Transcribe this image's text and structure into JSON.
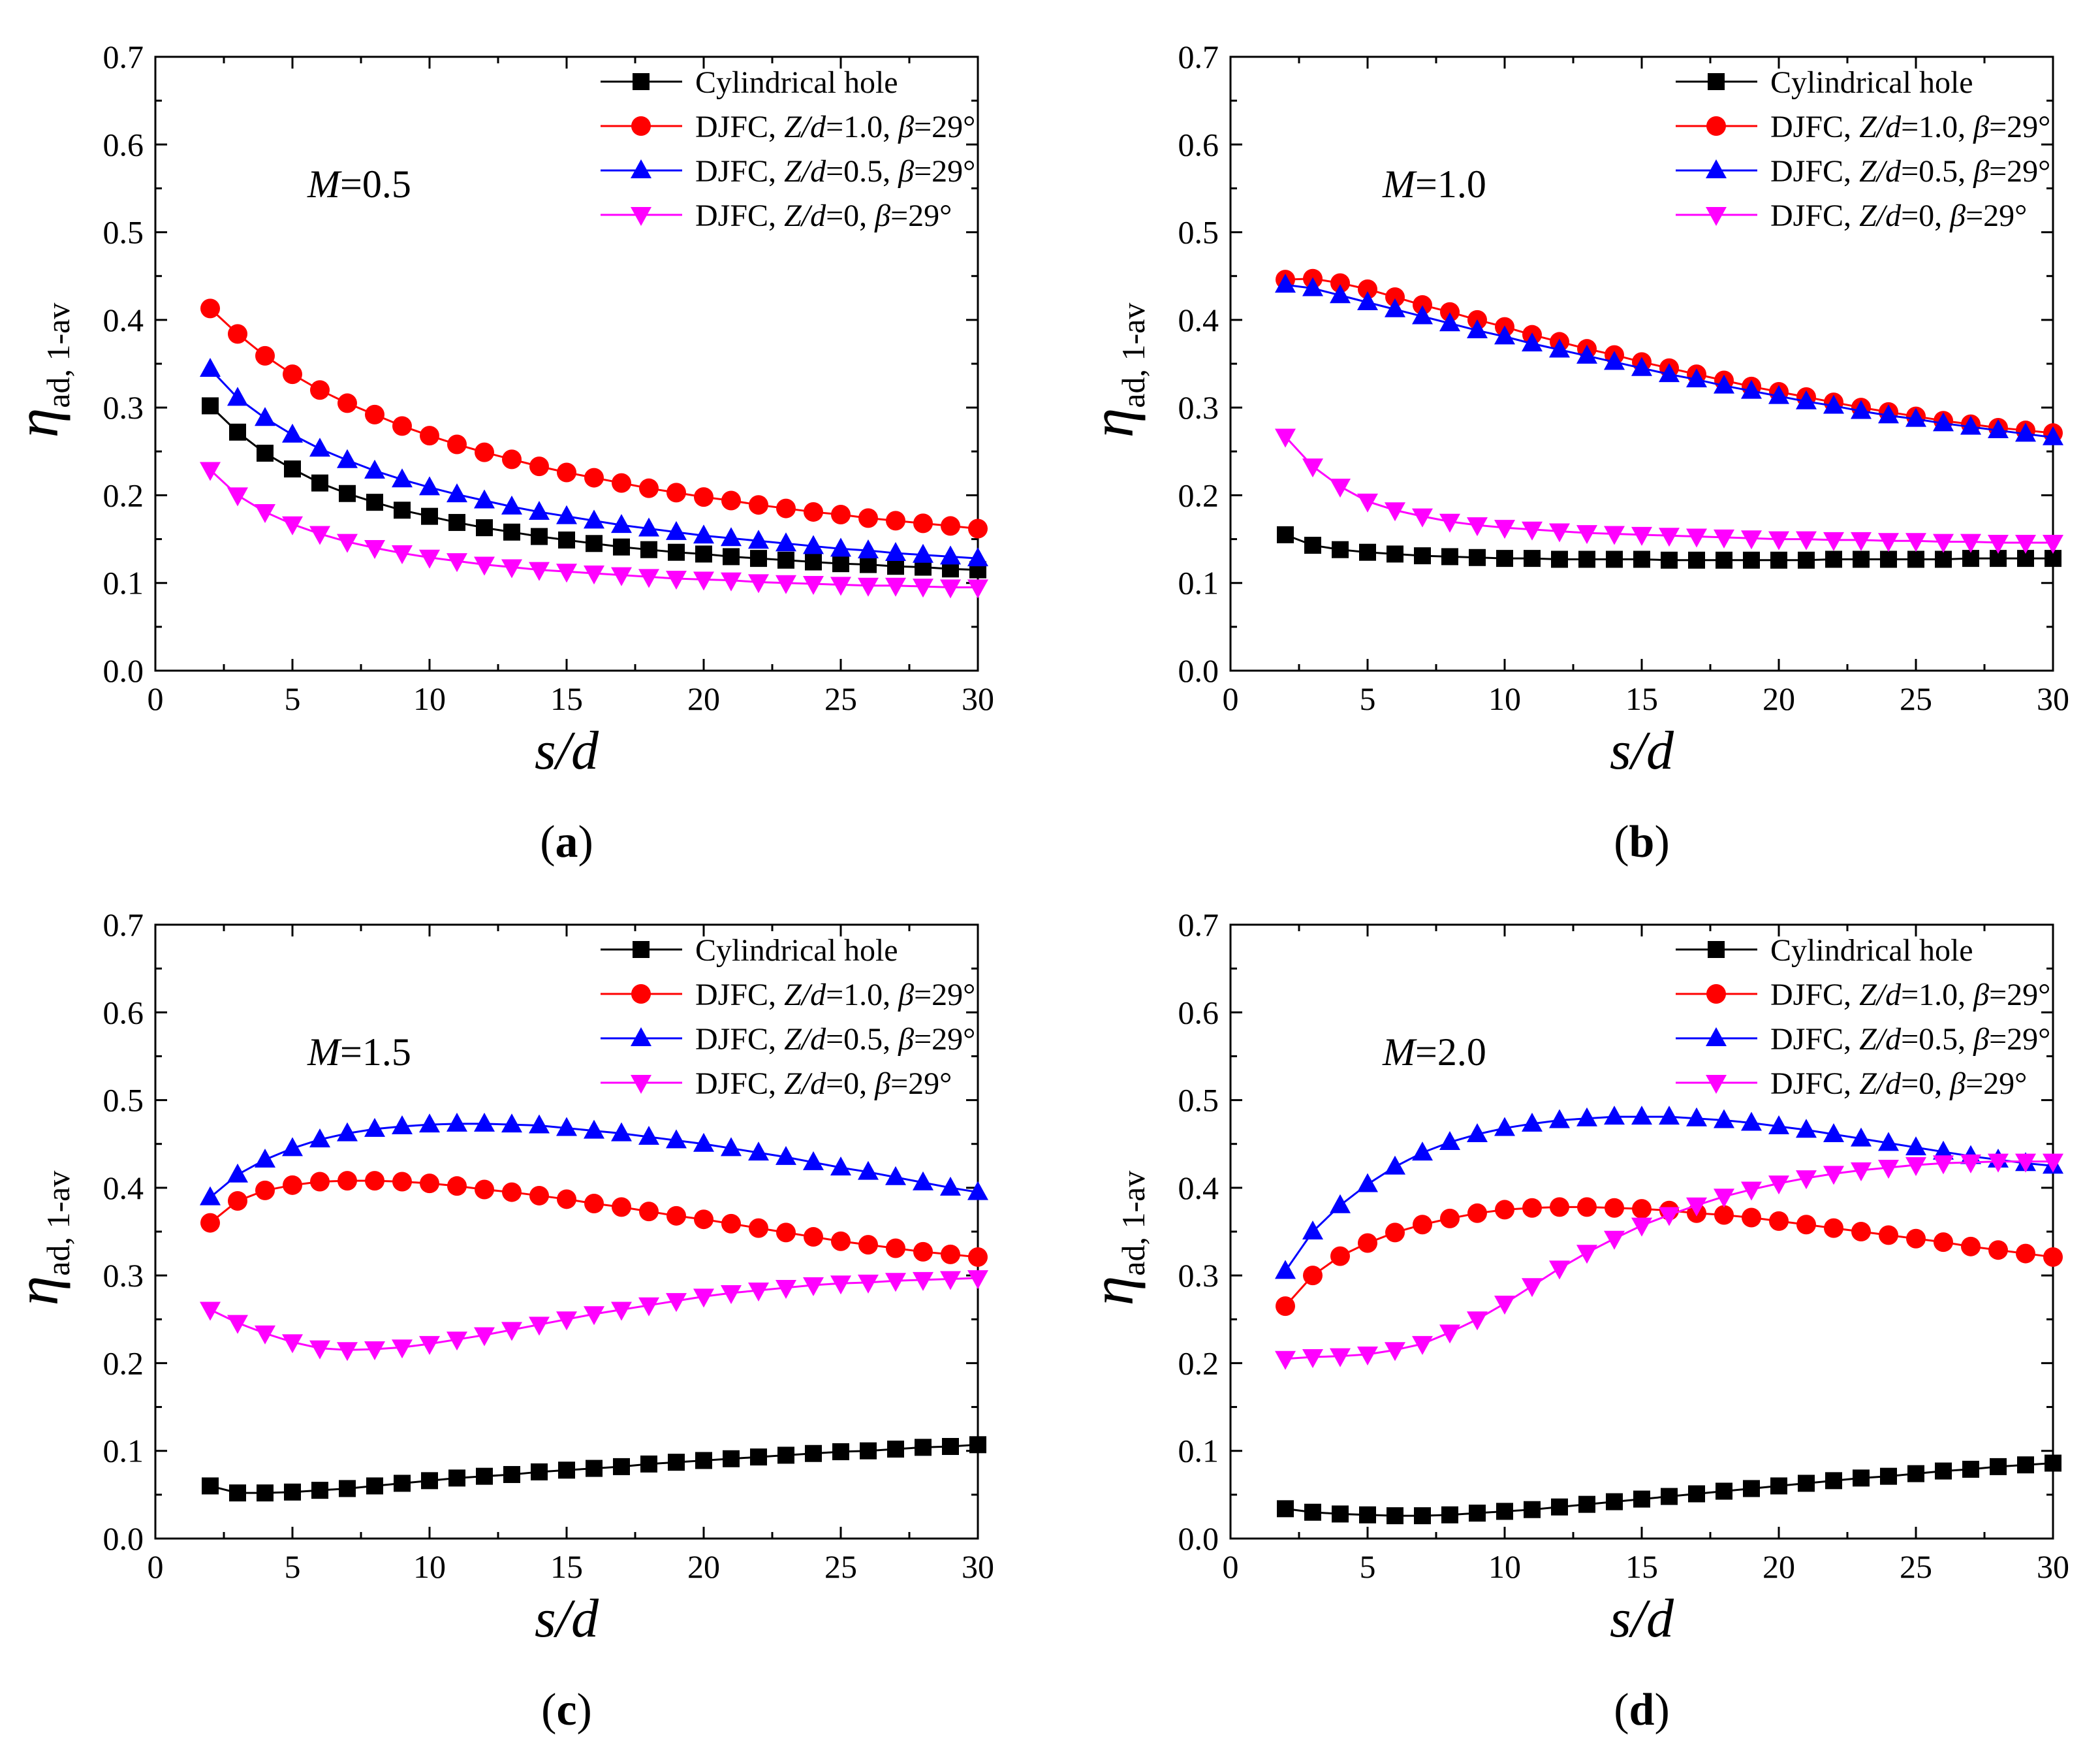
{
  "x": [
    2,
    3,
    4,
    5,
    6,
    7,
    8,
    9,
    10,
    11,
    12,
    13,
    14,
    15,
    16,
    17,
    18,
    19,
    20,
    21,
    22,
    23,
    24,
    25,
    26,
    27,
    28,
    29,
    30
  ],
  "charts": [
    {
      "caption": "(a)",
      "caption_letter": "a",
      "annotation": "M=0.5",
      "annotation_var": "M",
      "annotation_val": "=0.5",
      "chart_data": {
        "type": "line",
        "xlabel": "s/d",
        "ylabel": "η ad, 1-av",
        "xlim": [
          0,
          30
        ],
        "ylim": [
          0,
          0.7
        ],
        "x": [
          2,
          3,
          4,
          5,
          6,
          7,
          8,
          9,
          10,
          11,
          12,
          13,
          14,
          15,
          16,
          17,
          18,
          19,
          20,
          21,
          22,
          23,
          24,
          25,
          26,
          27,
          28,
          29,
          30
        ],
        "series": [
          {
            "name": "Cylindrical hole",
            "color": "#000000",
            "marker": "square",
            "values": [
              0.302,
              0.272,
              0.248,
              0.23,
              0.214,
              0.202,
              0.192,
              0.183,
              0.176,
              0.169,
              0.163,
              0.158,
              0.153,
              0.149,
              0.145,
              0.141,
              0.138,
              0.135,
              0.133,
              0.13,
              0.128,
              0.126,
              0.124,
              0.122,
              0.121,
              0.119,
              0.118,
              0.116,
              0.115
            ]
          },
          {
            "name": "DJFC, Z/d=1.0, β=29°",
            "color": "#ff0000",
            "marker": "circle",
            "values": [
              0.413,
              0.384,
              0.359,
              0.338,
              0.32,
              0.305,
              0.292,
              0.279,
              0.268,
              0.258,
              0.249,
              0.241,
              0.233,
              0.226,
              0.22,
              0.214,
              0.208,
              0.203,
              0.198,
              0.194,
              0.189,
              0.185,
              0.181,
              0.178,
              0.174,
              0.171,
              0.168,
              0.165,
              0.162
            ]
          },
          {
            "name": "DJFC, Z/d=0.5, β=29°",
            "color": "#0000ff",
            "marker": "triangle-up",
            "values": [
              0.344,
              0.311,
              0.288,
              0.269,
              0.253,
              0.24,
              0.228,
              0.218,
              0.209,
              0.201,
              0.194,
              0.187,
              0.181,
              0.176,
              0.171,
              0.166,
              0.162,
              0.158,
              0.154,
              0.151,
              0.148,
              0.145,
              0.142,
              0.139,
              0.137,
              0.134,
              0.132,
              0.13,
              0.128
            ]
          },
          {
            "name": "DJFC, Z/d=0, β=29°",
            "color": "#ff00ff",
            "marker": "triangle-down",
            "values": [
              0.229,
              0.2,
              0.181,
              0.167,
              0.156,
              0.147,
              0.14,
              0.134,
              0.129,
              0.125,
              0.121,
              0.118,
              0.115,
              0.113,
              0.111,
              0.109,
              0.107,
              0.105,
              0.104,
              0.103,
              0.101,
              0.1,
              0.099,
              0.098,
              0.097,
              0.097,
              0.096,
              0.095,
              0.095
            ]
          }
        ]
      }
    },
    {
      "caption": "(b)",
      "caption_letter": "b",
      "annotation": "M=1.0",
      "annotation_var": "M",
      "annotation_val": "=1.0",
      "chart_data": {
        "type": "line",
        "xlabel": "s/d",
        "ylabel": "η ad, 1-av",
        "xlim": [
          0,
          30
        ],
        "ylim": [
          0,
          0.7
        ],
        "x": [
          2,
          3,
          4,
          5,
          6,
          7,
          8,
          9,
          10,
          11,
          12,
          13,
          14,
          15,
          16,
          17,
          18,
          19,
          20,
          21,
          22,
          23,
          24,
          25,
          26,
          27,
          28,
          29,
          30
        ],
        "series": [
          {
            "name": "Cylindrical hole",
            "color": "#000000",
            "marker": "square",
            "values": [
              0.155,
              0.143,
              0.138,
              0.135,
              0.133,
              0.131,
              0.13,
              0.129,
              0.128,
              0.128,
              0.127,
              0.127,
              0.127,
              0.127,
              0.126,
              0.126,
              0.126,
              0.126,
              0.126,
              0.126,
              0.127,
              0.127,
              0.127,
              0.127,
              0.127,
              0.128,
              0.128,
              0.128,
              0.128
            ]
          },
          {
            "name": "DJFC, Z/d=1.0, β=29°",
            "color": "#ff0000",
            "marker": "circle",
            "values": [
              0.446,
              0.447,
              0.442,
              0.435,
              0.426,
              0.417,
              0.409,
              0.4,
              0.392,
              0.383,
              0.375,
              0.367,
              0.36,
              0.352,
              0.345,
              0.338,
              0.331,
              0.324,
              0.318,
              0.312,
              0.306,
              0.3,
              0.295,
              0.29,
              0.285,
              0.281,
              0.277,
              0.274,
              0.271
            ]
          },
          {
            "name": "DJFC, Z/d=0.5, β=29°",
            "color": "#0000ff",
            "marker": "triangle-up",
            "values": [
              0.44,
              0.436,
              0.428,
              0.42,
              0.412,
              0.404,
              0.396,
              0.388,
              0.381,
              0.373,
              0.366,
              0.359,
              0.352,
              0.345,
              0.338,
              0.332,
              0.325,
              0.319,
              0.313,
              0.307,
              0.302,
              0.296,
              0.291,
              0.287,
              0.282,
              0.278,
              0.274,
              0.27,
              0.266
            ]
          },
          {
            "name": "DJFC, Z/d=0, β=29°",
            "color": "#ff00ff",
            "marker": "triangle-down",
            "values": [
              0.267,
              0.233,
              0.21,
              0.193,
              0.183,
              0.176,
              0.17,
              0.166,
              0.163,
              0.161,
              0.159,
              0.157,
              0.156,
              0.155,
              0.154,
              0.153,
              0.152,
              0.151,
              0.15,
              0.15,
              0.149,
              0.149,
              0.148,
              0.148,
              0.147,
              0.147,
              0.146,
              0.146,
              0.146
            ]
          }
        ]
      }
    },
    {
      "caption": "(c)",
      "caption_letter": "c",
      "annotation": "M=1.5",
      "annotation_var": "M",
      "annotation_val": "=1.5",
      "chart_data": {
        "type": "line",
        "xlabel": "s/d",
        "ylabel": "η ad, 1-av",
        "xlim": [
          0,
          30
        ],
        "ylim": [
          0,
          0.7
        ],
        "x": [
          2,
          3,
          4,
          5,
          6,
          7,
          8,
          9,
          10,
          11,
          12,
          13,
          14,
          15,
          16,
          17,
          18,
          19,
          20,
          21,
          22,
          23,
          24,
          25,
          26,
          27,
          28,
          29,
          30
        ],
        "series": [
          {
            "name": "Cylindrical hole",
            "color": "#000000",
            "marker": "square",
            "values": [
              0.06,
              0.052,
              0.052,
              0.053,
              0.055,
              0.057,
              0.06,
              0.063,
              0.066,
              0.069,
              0.071,
              0.073,
              0.076,
              0.078,
              0.08,
              0.082,
              0.085,
              0.087,
              0.089,
              0.091,
              0.093,
              0.095,
              0.097,
              0.099,
              0.1,
              0.102,
              0.104,
              0.105,
              0.107
            ]
          },
          {
            "name": "DJFC, Z/d=1.0, β=29°",
            "color": "#ff0000",
            "marker": "circle",
            "values": [
              0.36,
              0.385,
              0.397,
              0.403,
              0.407,
              0.408,
              0.408,
              0.407,
              0.405,
              0.402,
              0.398,
              0.395,
              0.391,
              0.387,
              0.382,
              0.378,
              0.373,
              0.368,
              0.364,
              0.359,
              0.354,
              0.349,
              0.344,
              0.339,
              0.335,
              0.331,
              0.327,
              0.324,
              0.321
            ]
          },
          {
            "name": "DJFC, Z/d=0.5, β=29°",
            "color": "#0000ff",
            "marker": "triangle-up",
            "values": [
              0.389,
              0.415,
              0.432,
              0.445,
              0.455,
              0.462,
              0.467,
              0.47,
              0.472,
              0.473,
              0.473,
              0.472,
              0.471,
              0.468,
              0.465,
              0.462,
              0.458,
              0.454,
              0.45,
              0.445,
              0.44,
              0.435,
              0.429,
              0.423,
              0.418,
              0.412,
              0.406,
              0.4,
              0.395
            ]
          },
          {
            "name": "DJFC, Z/d=0, β=29°",
            "color": "#ff00ff",
            "marker": "triangle-down",
            "values": [
              0.261,
              0.246,
              0.234,
              0.224,
              0.217,
              0.215,
              0.216,
              0.218,
              0.222,
              0.227,
              0.232,
              0.238,
              0.244,
              0.25,
              0.256,
              0.261,
              0.266,
              0.271,
              0.276,
              0.28,
              0.283,
              0.286,
              0.289,
              0.291,
              0.292,
              0.294,
              0.295,
              0.296,
              0.297
            ]
          }
        ]
      }
    },
    {
      "caption": "(d)",
      "caption_letter": "d",
      "annotation": "M=2.0",
      "annotation_var": "M",
      "annotation_val": "=2.0",
      "chart_data": {
        "type": "line",
        "xlabel": "s/d",
        "ylabel": "η ad, 1-av",
        "xlim": [
          0,
          30
        ],
        "ylim": [
          0,
          0.7
        ],
        "x": [
          2,
          3,
          4,
          5,
          6,
          7,
          8,
          9,
          10,
          11,
          12,
          13,
          14,
          15,
          16,
          17,
          18,
          19,
          20,
          21,
          22,
          23,
          24,
          25,
          26,
          27,
          28,
          29,
          30
        ],
        "series": [
          {
            "name": "Cylindrical hole",
            "color": "#000000",
            "marker": "square",
            "values": [
              0.034,
              0.03,
              0.028,
              0.027,
              0.026,
              0.026,
              0.027,
              0.029,
              0.031,
              0.033,
              0.036,
              0.039,
              0.042,
              0.045,
              0.048,
              0.051,
              0.054,
              0.057,
              0.06,
              0.063,
              0.066,
              0.069,
              0.071,
              0.074,
              0.077,
              0.079,
              0.082,
              0.084,
              0.086
            ]
          },
          {
            "name": "DJFC, Z/d=1.0, β=29°",
            "color": "#ff0000",
            "marker": "circle",
            "values": [
              0.265,
              0.3,
              0.322,
              0.337,
              0.349,
              0.358,
              0.365,
              0.371,
              0.375,
              0.377,
              0.378,
              0.378,
              0.377,
              0.376,
              0.374,
              0.371,
              0.369,
              0.366,
              0.362,
              0.358,
              0.354,
              0.35,
              0.346,
              0.342,
              0.338,
              0.333,
              0.329,
              0.325,
              0.321
            ]
          },
          {
            "name": "DJFC, Z/d=0.5, β=29°",
            "color": "#0000ff",
            "marker": "triangle-up",
            "values": [
              0.305,
              0.35,
              0.38,
              0.404,
              0.424,
              0.44,
              0.452,
              0.461,
              0.468,
              0.473,
              0.477,
              0.479,
              0.481,
              0.481,
              0.481,
              0.479,
              0.477,
              0.474,
              0.47,
              0.466,
              0.461,
              0.456,
              0.451,
              0.446,
              0.441,
              0.436,
              0.432,
              0.428,
              0.425
            ]
          },
          {
            "name": "DJFC, Z/d=0, β=29°",
            "color": "#ff00ff",
            "marker": "triangle-down",
            "values": [
              0.205,
              0.207,
              0.208,
              0.21,
              0.215,
              0.222,
              0.235,
              0.25,
              0.268,
              0.288,
              0.308,
              0.326,
              0.342,
              0.357,
              0.369,
              0.38,
              0.39,
              0.398,
              0.405,
              0.411,
              0.416,
              0.42,
              0.423,
              0.426,
              0.428,
              0.429,
              0.43,
              0.43,
              0.43
            ]
          }
        ]
      }
    }
  ]
}
